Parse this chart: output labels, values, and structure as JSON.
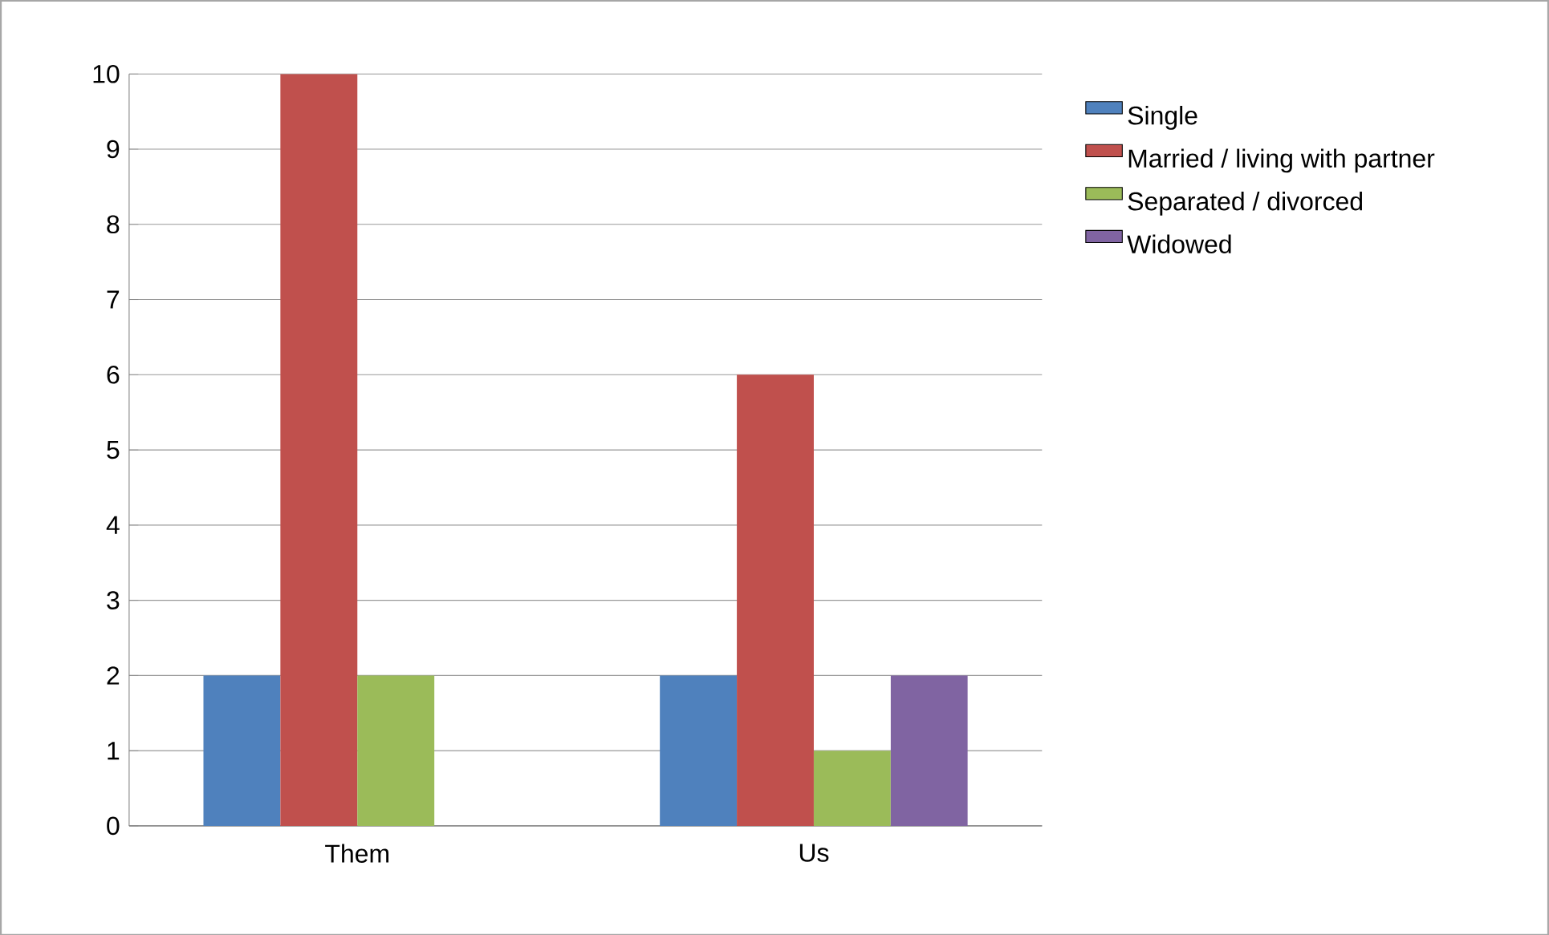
{
  "chart_data": {
    "type": "bar",
    "categories": [
      "Them",
      "Us"
    ],
    "series": [
      {
        "name": "Single",
        "color": "#4f81bd",
        "values": [
          2,
          2
        ]
      },
      {
        "name": "Married / living with partner",
        "color": "#c0504d",
        "values": [
          10,
          6
        ]
      },
      {
        "name": "Separated / divorced",
        "color": "#9bbb59",
        "values": [
          2,
          1
        ]
      },
      {
        "name": "Widowed",
        "color": "#8064a2",
        "values": [
          0,
          2
        ]
      }
    ],
    "ylim": [
      0,
      10
    ],
    "yticks": [
      0,
      1,
      2,
      3,
      4,
      5,
      6,
      7,
      8,
      9,
      10
    ],
    "grid": "y",
    "legend": "right"
  }
}
